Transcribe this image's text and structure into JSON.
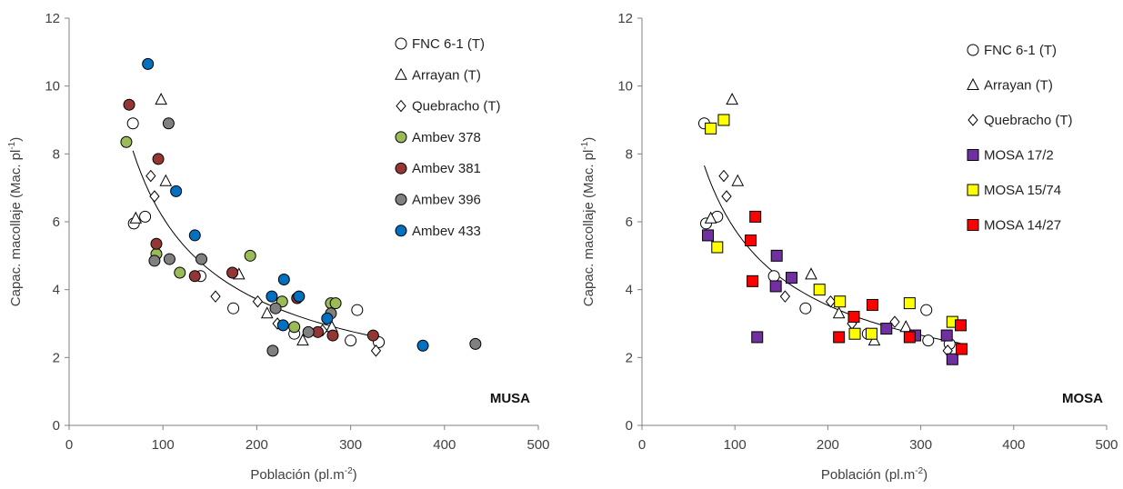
{
  "chart_data": [
    {
      "type": "scatter",
      "panel_label": "MUSA",
      "xlabel": "Población (pl.m",
      "xlabel_sup": "-2",
      "xlabel_end": ")",
      "ylabel": "Capac. macollaje (Mac. pl",
      "ylabel_sup": "-1",
      "ylabel_end": ")",
      "xlim": [
        0,
        500
      ],
      "ylim": [
        0,
        12
      ],
      "xticks": [
        "0",
        "100",
        "200",
        "300",
        "400",
        "500"
      ],
      "yticks": [
        "0",
        "2",
        "4",
        "6",
        "8",
        "10",
        "12"
      ],
      "grid": false,
      "legend_position": "top-right",
      "trendline": {
        "type": "power",
        "x_range": [
          68,
          332
        ]
      },
      "series": [
        {
          "name": "FNC 6-1 (T)",
          "marker": "circle",
          "color": "#ffffff",
          "points": [
            [
              68,
              8.9
            ],
            [
              69,
              5.95
            ],
            [
              81,
              6.15
            ],
            [
              140,
              4.4
            ],
            [
              175,
              3.45
            ],
            [
              240,
              2.7
            ],
            [
              300,
              2.5
            ],
            [
              307,
              3.4
            ],
            [
              330,
              2.45
            ]
          ]
        },
        {
          "name": "Arrayan (T)",
          "marker": "triangle",
          "color": "#ffffff",
          "points": [
            [
              71,
              6.1
            ],
            [
              98,
              9.6
            ],
            [
              103,
              7.2
            ],
            [
              181,
              4.45
            ],
            [
              211,
              3.3
            ],
            [
              249,
              2.5
            ],
            [
              280,
              2.9
            ]
          ]
        },
        {
          "name": "Quebracho (T)",
          "marker": "diamond",
          "color": "#ffffff",
          "points": [
            [
              87,
              7.35
            ],
            [
              91,
              6.75
            ],
            [
              156,
              3.8
            ],
            [
              201,
              3.65
            ],
            [
              222,
              3.0
            ],
            [
              270,
              2.8
            ],
            [
              327,
              2.2
            ]
          ]
        },
        {
          "name": "Ambev 378",
          "marker": "circle",
          "color": "#9bbb59",
          "points": [
            [
              61,
              8.35
            ],
            [
              93,
              5.05
            ],
            [
              118,
              4.5
            ],
            [
              193,
              5.0
            ],
            [
              227,
              3.65
            ],
            [
              240,
              2.9
            ],
            [
              279,
              3.6
            ],
            [
              284,
              3.6
            ]
          ]
        },
        {
          "name": "Ambev 381",
          "marker": "circle",
          "color": "#943634",
          "points": [
            [
              64,
              9.45
            ],
            [
              93,
              5.35
            ],
            [
              95,
              7.85
            ],
            [
              134,
              4.4
            ],
            [
              174,
              4.5
            ],
            [
              243,
              3.75
            ],
            [
              265,
              2.75
            ],
            [
              281,
              2.65
            ],
            [
              324,
              2.65
            ]
          ]
        },
        {
          "name": "Ambev 396",
          "marker": "circle",
          "color": "#808080",
          "points": [
            [
              91,
              4.85
            ],
            [
              106,
              8.9
            ],
            [
              107,
              4.9
            ],
            [
              141,
              4.9
            ],
            [
              217,
              2.2
            ],
            [
              220,
              3.45
            ],
            [
              255,
              2.75
            ],
            [
              279,
              3.3
            ]
          ]
        },
        {
          "name": "Ambev 433",
          "marker": "circle",
          "color": "#0070c0",
          "points": [
            [
              84,
              10.65
            ],
            [
              114,
              6.9
            ],
            [
              134,
              5.6
            ],
            [
              216,
              3.8
            ],
            [
              228,
              2.95
            ],
            [
              229,
              4.3
            ],
            [
              245,
              3.8
            ],
            [
              275,
              3.15
            ],
            [
              377,
              2.35
            ]
          ]
        },
        {
          "name": "",
          "marker": "circle",
          "color": "#808080",
          "points": [
            [
              433,
              2.4
            ]
          ]
        }
      ]
    },
    {
      "type": "scatter",
      "panel_label": "MOSA",
      "xlabel": "Población (pl.m",
      "xlabel_sup": "-2",
      "xlabel_end": ")",
      "ylabel": "Capac. macollaje (Mac. pl",
      "ylabel_sup": "-1",
      "ylabel_end": ")",
      "xlim": [
        0,
        500
      ],
      "ylim": [
        0,
        12
      ],
      "xticks": [
        "0",
        "100",
        "200",
        "300",
        "400",
        "500"
      ],
      "yticks": [
        "0",
        "2",
        "4",
        "6",
        "8",
        "10",
        "12"
      ],
      "grid": false,
      "legend_position": "top-right",
      "trendline": {
        "type": "power",
        "x_range": [
          67,
          343
        ]
      },
      "series": [
        {
          "name": "FNC 6-1 (T)",
          "marker": "circle",
          "color": "#ffffff",
          "points": [
            [
              67,
              8.9
            ],
            [
              69,
              5.95
            ],
            [
              81,
              6.15
            ],
            [
              142,
              4.4
            ],
            [
              176,
              3.45
            ],
            [
              243,
              2.7
            ],
            [
              306,
              3.4
            ],
            [
              308,
              2.5
            ],
            [
              331,
              2.4
            ]
          ]
        },
        {
          "name": "Arrayan (T)",
          "marker": "triangle",
          "color": "#ffffff",
          "points": [
            [
              74,
              6.1
            ],
            [
              97,
              9.6
            ],
            [
              103,
              7.2
            ],
            [
              182,
              4.45
            ],
            [
              212,
              3.3
            ],
            [
              250,
              2.5
            ],
            [
              284,
              2.9
            ]
          ]
        },
        {
          "name": "Quebracho (T)",
          "marker": "diamond",
          "color": "#ffffff",
          "points": [
            [
              88,
              7.35
            ],
            [
              91,
              6.75
            ],
            [
              154,
              3.8
            ],
            [
              203,
              3.65
            ],
            [
              226,
              3.0
            ],
            [
              272,
              3.05
            ],
            [
              329,
              2.2
            ]
          ]
        },
        {
          "name": "MOSA 17/2",
          "marker": "square",
          "color": "#7030a0",
          "points": [
            [
              71,
              5.6
            ],
            [
              124,
              2.6
            ],
            [
              144,
              4.1
            ],
            [
              145,
              5.0
            ],
            [
              161,
              4.35
            ],
            [
              263,
              2.85
            ],
            [
              294,
              2.65
            ],
            [
              328,
              2.65
            ],
            [
              334,
              1.95
            ]
          ]
        },
        {
          "name": "MOSA 15/74",
          "marker": "square",
          "color": "#ffff00",
          "points": [
            [
              74,
              8.75
            ],
            [
              81,
              5.25
            ],
            [
              88,
              9.0
            ],
            [
              191,
              4.0
            ],
            [
              213,
              3.65
            ],
            [
              229,
              2.7
            ],
            [
              247,
              2.7
            ],
            [
              288,
              3.6
            ],
            [
              334,
              3.05
            ]
          ]
        },
        {
          "name": "MOSA 14/27",
          "marker": "square",
          "color": "#ff0000",
          "points": [
            [
              117,
              5.45
            ],
            [
              119,
              4.25
            ],
            [
              122,
              6.15
            ],
            [
              212,
              2.6
            ],
            [
              228,
              3.2
            ],
            [
              248,
              3.55
            ],
            [
              288,
              2.6
            ],
            [
              343,
              2.95
            ],
            [
              344,
              2.25
            ]
          ]
        }
      ]
    }
  ]
}
